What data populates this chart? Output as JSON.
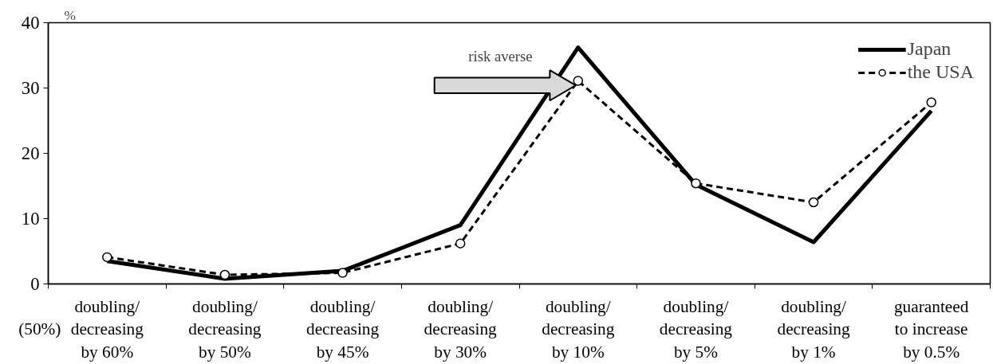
{
  "chart_data": {
    "type": "line",
    "categories": [
      "doubling/\ndecreasing\nby 60%",
      "doubling/\ndecreasing\nby 50%",
      "doubling/\ndecreasing\nby 45%",
      "doubling/\ndecreasing\nby 30%",
      "doubling/\ndecreasing\nby 10%",
      "doubling/\ndecreasing\nby 5%",
      "doubling/\ndecreasing\nby 1%",
      "guaranteed\nto increase\nby 0.5%"
    ],
    "series": [
      {
        "name": "Japan",
        "color": "#000000",
        "line_style": "solid",
        "marker": "none",
        "values": [
          3.5,
          0.8,
          2.0,
          9.0,
          36.2,
          15.2,
          6.4,
          26.5
        ]
      },
      {
        "name": "the USA",
        "color": "#000000",
        "line_style": "dashed",
        "marker": "circle",
        "values": [
          4.1,
          1.4,
          1.7,
          6.2,
          31.1,
          15.4,
          12.5,
          27.8
        ]
      }
    ],
    "ylabel": "%",
    "ylim": [
      0,
      40
    ],
    "yticks": [
      0,
      10,
      20,
      30,
      40
    ],
    "grid": false,
    "legend": "top right",
    "annotations": [
      "risk averse",
      "(50%)"
    ]
  }
}
